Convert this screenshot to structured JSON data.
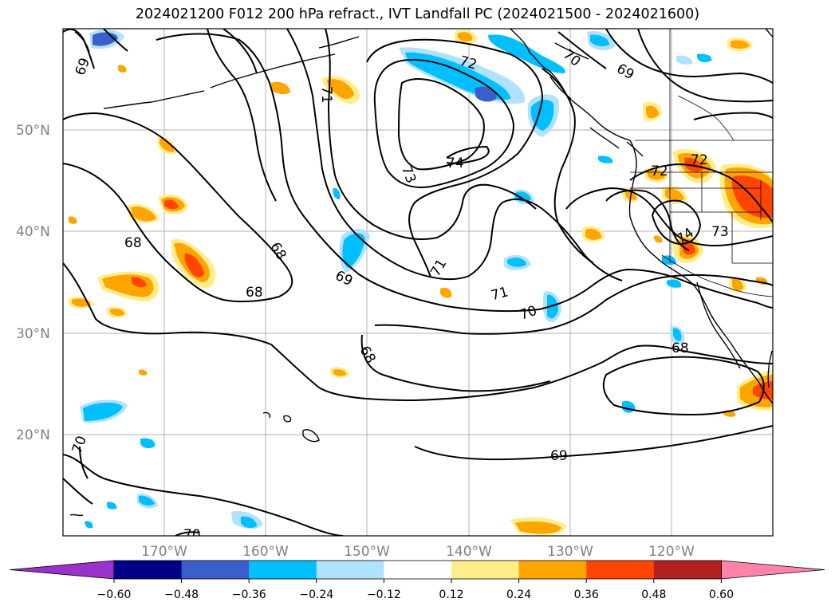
{
  "title": "2024021200 F012 200 hPa refract., IVT Landfall PC (2024021500 - 2024021600)",
  "lat_labels": [
    "50°N",
    "40°N",
    "30°N",
    "20°N"
  ],
  "lon_labels": [
    "170°W",
    "160°W",
    "150°W",
    "140°W",
    "130°W",
    "120°W"
  ],
  "contour_labels": [
    "69",
    "71",
    "72",
    "70",
    "69",
    "73",
    "74",
    "71",
    "72",
    "68",
    "68",
    "68",
    "69",
    "71",
    "70",
    "74",
    "73",
    "68",
    "68",
    "70",
    "69",
    "70"
  ],
  "colorbar": {
    "colors": [
      "#9932cc",
      "#00008b",
      "#3a5fcd",
      "#00bfff",
      "#b0e2ff",
      "#ffffff",
      "#ffec8b",
      "#ffa500",
      "#ff4500",
      "#b22222",
      "#ff83a8"
    ],
    "labels": [
      "−0.60",
      "−0.48",
      "−0.36",
      "−0.24",
      "−0.12",
      "0.12",
      "0.24",
      "0.36",
      "0.48",
      "0.60"
    ]
  }
}
